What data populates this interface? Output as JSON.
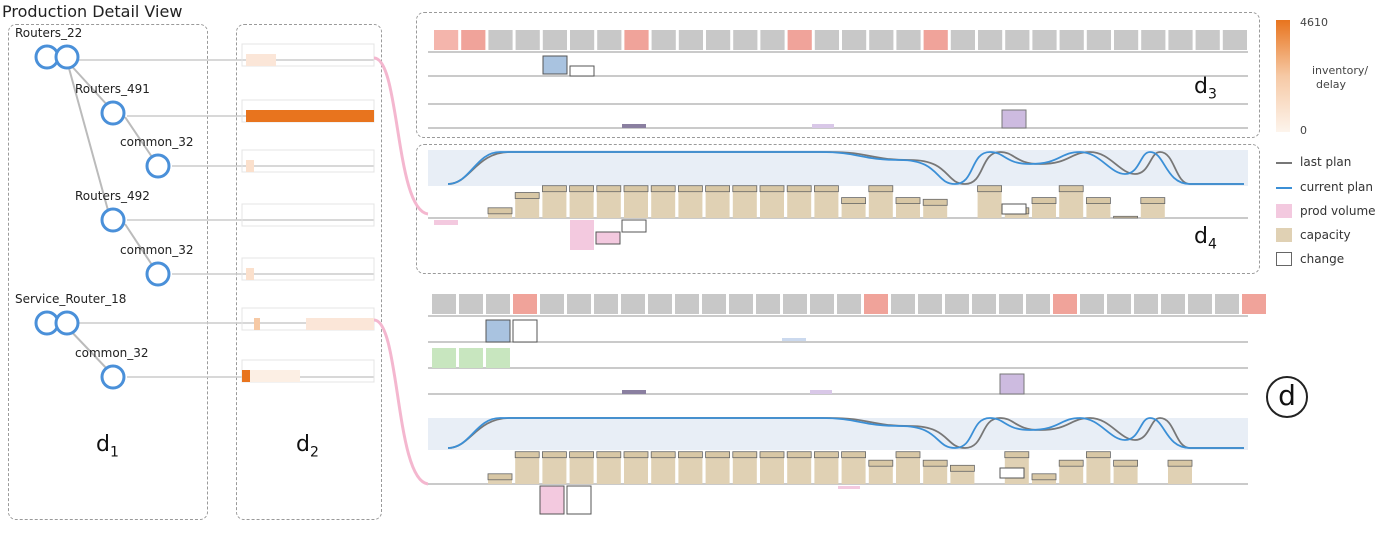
{
  "page": {
    "title": "Production Detail View"
  },
  "labels": {
    "d": "d",
    "d1": "1",
    "d2": "2",
    "d3": "3",
    "d4": "4",
    "d_big": "d"
  },
  "colors": {
    "accent_orange": "#e8741e",
    "salmon": "#f0a39a",
    "gray_cell": "#c8c8c8",
    "blue_node": "#4a90d9",
    "capacity": "#e0d1b4",
    "prod_volume": "#f3c9df",
    "current_plan": "#3b8fd6",
    "last_plan": "#777777",
    "plan_band": "#e8eef6"
  },
  "legend": {
    "colorbar": {
      "max": "4610",
      "min": "0",
      "label_line1": "inventory/",
      "label_line2": "delay"
    },
    "items": [
      {
        "key": "last-plan",
        "label": "last plan"
      },
      {
        "key": "current-plan",
        "label": "current plan"
      },
      {
        "key": "prod-volume",
        "label": "prod volume"
      },
      {
        "key": "capacity",
        "label": "capacity"
      },
      {
        "key": "change",
        "label": "change"
      }
    ]
  },
  "chart_data": {
    "type": "table",
    "tree": [
      {
        "label": "Routers_22",
        "level": 0,
        "double": true
      },
      {
        "label": "Routers_491",
        "level": 1,
        "double": false
      },
      {
        "label": "common_32",
        "level": 2,
        "double": false
      },
      {
        "label": "Routers_492",
        "level": 1,
        "double": false
      },
      {
        "label": "common_32",
        "level": 2,
        "double": false
      },
      {
        "label": "Service_Router_18",
        "level": 0,
        "double": true
      },
      {
        "label": "common_32",
        "level": 1,
        "double": false
      }
    ],
    "top_status_row": [
      "s",
      "r",
      "g",
      "g",
      "g",
      "g",
      "g",
      "r",
      "g",
      "g",
      "g",
      "g",
      "g",
      "r",
      "g",
      "g",
      "g",
      "g",
      "r",
      "g",
      "g",
      "g",
      "g",
      "g",
      "g",
      "g",
      "g",
      "g",
      "g",
      "g",
      "g",
      "g",
      "g",
      "g",
      "g",
      "r",
      "g",
      "g",
      "g",
      "g",
      "g",
      "g",
      "g",
      "g",
      "g",
      "g"
    ],
    "bottom_status_row": [
      "g",
      "g",
      "g",
      "r",
      "g",
      "g",
      "g",
      "g",
      "g",
      "g",
      "g",
      "g",
      "g",
      "g",
      "g",
      "g",
      "r",
      "g",
      "g",
      "g",
      "g",
      "g",
      "g",
      "r",
      "g",
      "g",
      "g",
      "g",
      "g",
      "g",
      "r"
    ],
    "top_capacity": [
      0.3,
      0.75,
      0.95,
      0.95,
      0.95,
      0.95,
      0.95,
      0.95,
      0.95,
      0.95,
      0.95,
      0.95,
      0.95,
      0.6,
      0.95,
      0.6,
      0.55,
      0,
      0.95,
      0.3,
      0.6,
      0.95,
      0.6,
      0.05,
      0.6,
      0
    ],
    "bottom_capacity": [
      0.3,
      0.95,
      0.95,
      0.95,
      0.95,
      0.95,
      0.95,
      0.95,
      0.95,
      0.95,
      0.95,
      0.95,
      0.95,
      0.95,
      0.7,
      0.95,
      0.7,
      0.55,
      0,
      0.95,
      0.3,
      0.7,
      0.95,
      0.7,
      0,
      0.7
    ]
  }
}
